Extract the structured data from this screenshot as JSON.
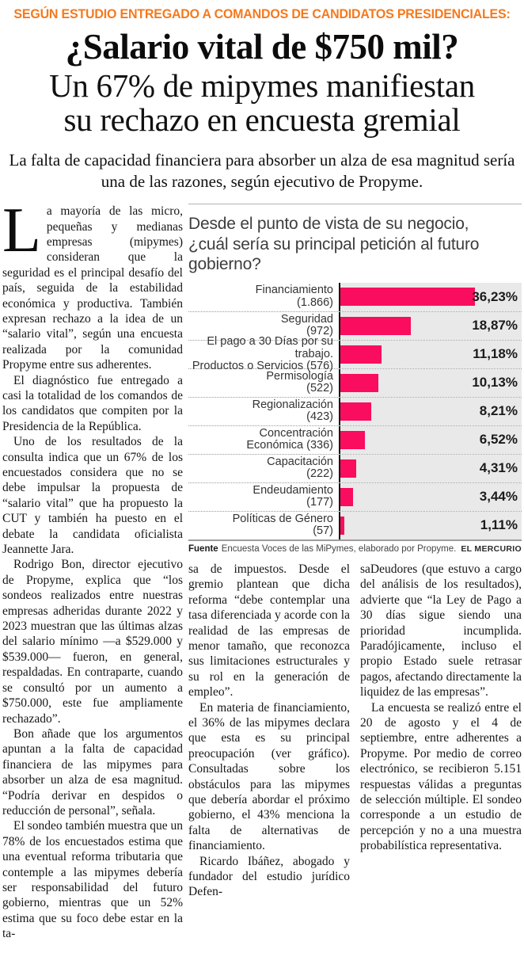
{
  "colors": {
    "kicker_orange": "#f5791d",
    "bar_pink": "#fa0c5f",
    "panel_gray": "#e9e9e9"
  },
  "kicker": "SEGÚN ESTUDIO ENTREGADO A COMANDOS DE CANDIDATOS PRESIDENCIALES:",
  "headline": {
    "line1": "¿Salario vital de $750 mil?",
    "line2": "Un 67% de mipymes manifiestan",
    "line3": "su rechazo en encuesta gremial"
  },
  "deck": "La falta de capacidad financiera para absorber un alza de esa magnitud sería una de las razones, según ejecutivo de Propyme.",
  "article": {
    "column1": {
      "dropcap": "L",
      "paragraphs": [
        "a mayoría de las micro, pequeñas y medianas empresas (mipymes) consideran que la seguridad es el principal desafío del país, seguida de la estabilidad económica y productiva. También expresan rechazo a la idea de un “salario vital”, según una encuesta realizada por la comunidad Propyme entre sus adherentes.",
        "El diagnóstico fue entregado a casi la totalidad de los comandos de los candidatos que compiten por la Presidencia de la República.",
        "Uno de los resultados de la consulta indica que un 67% de los encuestados considera que no se debe impulsar la propuesta de “salario vital” que ha propuesto la CUT y también ha puesto en el debate la candidata oficialista Jeannette Jara.",
        "Rodrigo Bon, director ejecutivo de Propyme, explica que “los sondeos realizados entre nuestras empresas adheridas durante 2022 y 2023 muestran que las últimas alzas del salario mínimo —a $529.000 y $539.000— fueron, en general, respaldadas. En contraparte, cuando se consultó por un aumento a $750.000, este fue ampliamente rechazado”.",
        "Bon añade que los argumentos apuntan a la falta de capacidad financiera de las mipymes para absorber un alza de esa magnitud. “Podría derivar en despidos o reducción de personal”, señala.",
        "El sondeo también muestra que un 78% de los encuestados estima que una eventual reforma tributaria que contemple a las mipymes debería ser responsabilidad del futuro gobierno, mientras que un 52% estima que su foco debe estar en la ta-"
      ]
    },
    "column2": {
      "paragraphs": [
        "sa de impuestos. Desde el gremio plantean que dicha reforma “debe contemplar una tasa diferenciada y acorde con la realidad de las empresas de menor tamaño, que reconozca sus limitaciones estructurales y su rol en la generación de empleo”.",
        "En materia de financiamiento, el 36% de las mipymes declara que esta es su principal preocupación (ver gráfico). Consultadas sobre los obstáculos para las mipymes que debería abordar el próximo gobierno, el 43% menciona la falta de alternativas de financiamiento.",
        "Ricardo Ibáñez, abogado y fundador del estudio jurídico Defen-"
      ]
    },
    "column3": {
      "paragraphs": [
        "saDeudores (que estuvo a cargo del análisis de los resultados), advierte que “la Ley de Pago a 30 días sigue siendo una prioridad incumplida. Paradójicamente, incluso el propio Estado suele retrasar pagos, afectando directamente la liquidez de las empresas”.",
        "La encuesta se realizó entre el 20 de agosto y el 4 de septiembre, entre adherentes a Propyme. Por medio de correo electrónico, se recibieron 5.151 respuestas válidas a preguntas de selección múltiple. El sondeo corresponde a un estudio de percepción y no a una muestra probabilística representativa."
      ]
    }
  },
  "chart": {
    "title_line1": "Desde el punto de vista de su negocio,",
    "title_line2": "¿cuál sería su principal petición al futuro gobierno?",
    "source_label": "Fuente",
    "source_text": "Encuesta Voces de las MiPymes, elaborado por Propyme.",
    "credit": "EL MERCURIO"
  },
  "chart_data": {
    "type": "bar",
    "orientation": "horizontal",
    "title": "Desde el punto de vista de su negocio, ¿cuál sería su principal petición al futuro gobierno?",
    "categories": [
      "Financiamiento",
      "Seguridad",
      "El pago a 30 Días por su trabajo. Productos o Servicios",
      "Permisología",
      "Regionalización",
      "Concentración Económica",
      "Capacitación",
      "Endeudamiento",
      "Políticas de Género"
    ],
    "counts": [
      1866,
      972,
      576,
      522,
      423,
      336,
      222,
      177,
      57
    ],
    "values": [
      36.23,
      18.87,
      11.18,
      10.13,
      8.21,
      6.52,
      4.31,
      3.44,
      1.11
    ],
    "value_labels": [
      "36,23%",
      "18,87%",
      "11,18%",
      "10,13%",
      "8,21%",
      "6,52%",
      "4,31%",
      "3,44%",
      "1,11%"
    ],
    "label_lines": [
      [
        "Financiamiento",
        "(1.866)"
      ],
      [
        "Seguridad",
        "(972)"
      ],
      [
        "El pago a 30 Días por su trabajo.",
        "Productos o Servicios (576)"
      ],
      [
        "Permisología",
        "(522)"
      ],
      [
        "Regionalización",
        "(423)"
      ],
      [
        "Concentración",
        "Económica (336)"
      ],
      [
        "Capacitación",
        "(222)"
      ],
      [
        "Endeudamiento",
        "(177)"
      ],
      [
        "Políticas de Género",
        "(57)"
      ]
    ],
    "xlim": [
      0,
      40
    ],
    "grid": false,
    "legend": "none",
    "bar_color": "#fa0c5f",
    "value_label_position": "right-of-panel",
    "source": "Encuesta Voces de las MiPymes, elaborado por Propyme.",
    "credit": "EL MERCURIO"
  }
}
